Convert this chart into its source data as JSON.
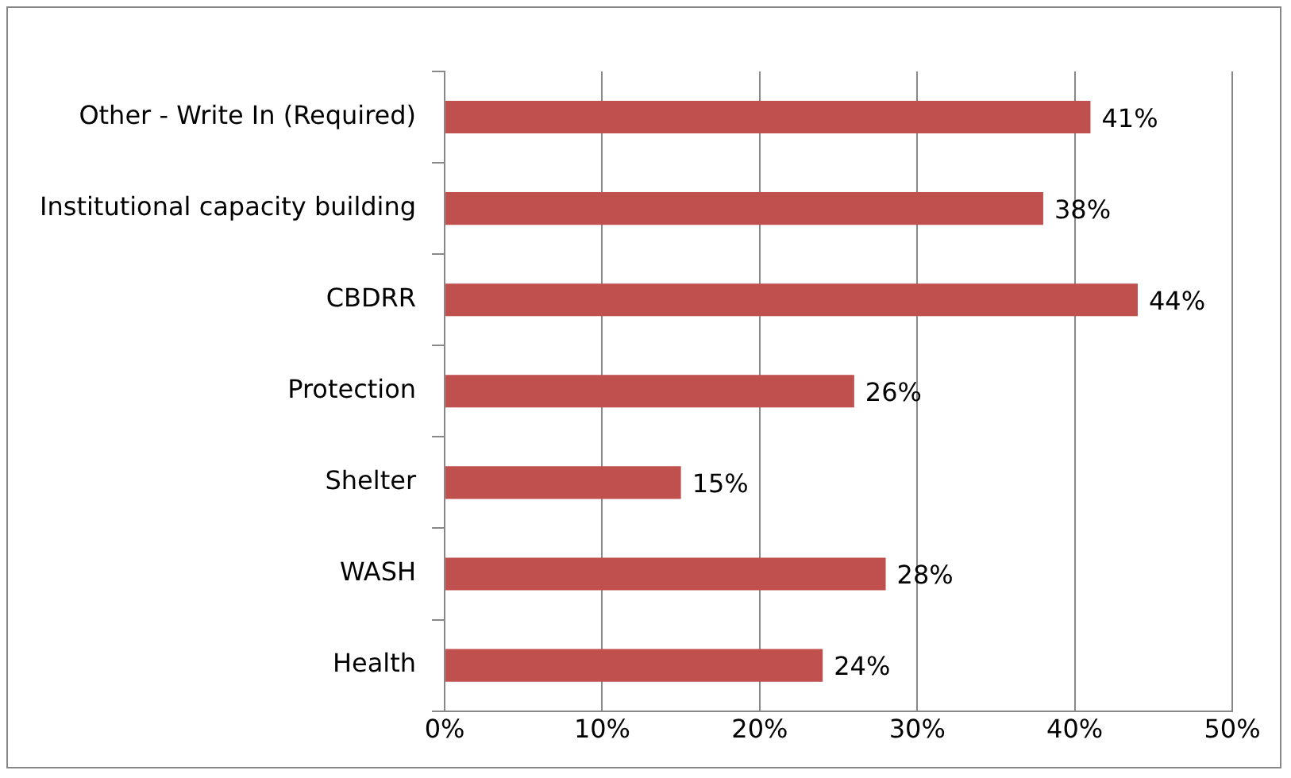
{
  "chart_data": {
    "type": "bar",
    "orientation": "horizontal",
    "categories": [
      "Other - Write In (Required)",
      "Institutional capacity building",
      "CBDRR",
      "Protection",
      "Shelter",
      "WASH",
      "Health"
    ],
    "values": [
      41,
      38,
      44,
      26,
      15,
      28,
      24
    ],
    "value_labels": [
      "41%",
      "38%",
      "44%",
      "26%",
      "15%",
      "28%",
      "24%"
    ],
    "color": "#c0504d",
    "xlim": [
      0,
      50
    ],
    "xticks": [
      {
        "value": 0,
        "label": "0%"
      },
      {
        "value": 10,
        "label": "10%"
      },
      {
        "value": 20,
        "label": "20%"
      },
      {
        "value": 30,
        "label": "30%"
      },
      {
        "value": 40,
        "label": "40%"
      },
      {
        "value": 50,
        "label": "50%"
      }
    ],
    "grid": "x"
  }
}
